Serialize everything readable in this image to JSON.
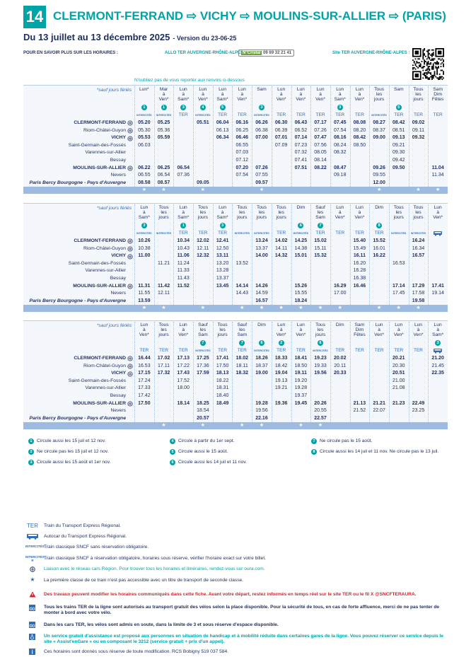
{
  "header": {
    "line_number": "14",
    "title": "CLERMONT-FERRAND ⇨ VICHY ⇨ MOULINS-SUR-ALLIER ⇨ (PARIS)",
    "subtitle": "Du 13 juillet au 13 décembre 2025",
    "version": "- Version du 23-06-25"
  },
  "info": {
    "label": "POUR EN SAVOIR PLUS SUR LES HORAIRES :",
    "phone_label": "ALLO TER AUVERGNE-RHÔNE-ALPES :",
    "phone_badge": "N°Cristal",
    "phone": "09 69 32 21 41",
    "site_label": "Site TER AUVERGNE-RHÔNE-ALPES :"
  },
  "notice": "N'oubliez pas de vous reporter aux renvois ci-dessous",
  "tables": [
    {
      "caption": "*sauf jours fériés",
      "days": [
        "Lun*",
        "Mar à Ven*",
        "Lun à Sam*",
        "Lun à Ven*",
        "Lun à Sam*",
        "Lun à Ven*",
        "Sam",
        "Lun à Ven*",
        "Lun à Ven*",
        "Lun à Ven*",
        "Lun à Sam*",
        "Lun à Ven*",
        "Tous les jours",
        "Sam",
        "Tous les jours",
        "Sam Dim Fêtes"
      ],
      "notes": [
        "1",
        "1",
        "3",
        "4",
        "5",
        null,
        "3",
        null,
        null,
        null,
        "3",
        null,
        null,
        "5",
        null,
        null
      ],
      "types": [
        "INTERCITÉS",
        "INTERCITÉS",
        "TER",
        "INTERCITÉS",
        "TER",
        "TER",
        "INTERCITÉS",
        "TER",
        "TER",
        "TER",
        "TER",
        "TER",
        "INTERCITÉS",
        "TER",
        "TER",
        "TER"
      ],
      "rows": [
        {
          "station": "CLERMONT-FERRAND",
          "times": [
            "05.20",
            "05.25",
            null,
            "05.51",
            "06.04",
            "06.16",
            "06.26",
            "06.30",
            "06.43",
            "07.17",
            "07.45",
            "08.08",
            "08.27",
            "08.42",
            "09.02",
            null
          ]
        },
        {
          "station": "Riom-Châtel-Guyon",
          "times": [
            "05.30",
            "05.36",
            null,
            null,
            "06.13",
            "06.25",
            "06.38",
            "06.39",
            "06.52",
            "07.26",
            "07.54",
            "08.20",
            "08.37",
            "08.51",
            "09.11",
            null
          ]
        },
        {
          "station": "VICHY",
          "times": [
            "05.53",
            "05.59",
            null,
            null,
            "06.34",
            "06.46",
            "07.00",
            "07.01",
            "07.14",
            "07.47",
            "08.16",
            "08.42",
            "09.00",
            "09.13",
            "09.32",
            null
          ]
        },
        {
          "station": "Saint-Germain-des-Fossés",
          "times": [
            "06.03",
            null,
            null,
            null,
            null,
            "06.55",
            null,
            "07.09",
            "07.23",
            "07.56",
            "08.24",
            "08.50",
            null,
            "09.21",
            null,
            null
          ]
        },
        {
          "station": "Varennes-sur-Allier",
          "times": [
            null,
            null,
            null,
            null,
            null,
            "07.03",
            null,
            null,
            "07.32",
            "08.05",
            "08.32",
            null,
            null,
            "09.30",
            null,
            null
          ]
        },
        {
          "station": "Bessay",
          "times": [
            null,
            null,
            null,
            null,
            null,
            "07.12",
            null,
            null,
            "07.41",
            "08.14",
            null,
            null,
            null,
            "09.42",
            null,
            null
          ]
        },
        {
          "station": "MOULINS-SUR-ALLIER",
          "times": [
            "06.22",
            "06.25",
            "06.54",
            null,
            null,
            "07.20",
            "07.26",
            null,
            "07.51",
            "08.22",
            "08.47",
            null,
            "09.26",
            "09.50",
            null,
            "11.04"
          ]
        },
        {
          "station": "Nevers",
          "times": [
            "06.55",
            "06.54",
            "07.36",
            null,
            null,
            "07.54",
            "07.55",
            null,
            null,
            null,
            "09.18",
            null,
            "09.55",
            null,
            null,
            "11.34"
          ]
        },
        {
          "station": "Paris Bercy Bourgogne - Pays d'Auvergne",
          "times": [
            "08.58",
            "08.57",
            null,
            "09.05",
            null,
            null,
            "09.57",
            null,
            null,
            null,
            null,
            null,
            "12.00",
            null,
            null,
            null
          ]
        }
      ],
      "stars": [
        "★",
        "★",
        null,
        "★",
        null,
        null,
        "★",
        null,
        null,
        null,
        null,
        null,
        "★",
        null,
        "★",
        "★"
      ]
    },
    {
      "caption": "*sauf jours fériés",
      "days": [
        "Lun à Sam*",
        "Tous les jours",
        "Lun à Sam*",
        "Tous les jours",
        "Lun à Sam*",
        "Tous les jours",
        "Tous les jours",
        "Tous les jours",
        "Dim",
        "Sauf les Sam",
        "Lun à Ven*",
        "Lun à Ven*",
        "Dim",
        "Tous les jours",
        "Tous les jours",
        "Lun à Ven*"
      ],
      "notes": [
        "3",
        null,
        "1",
        null,
        "3",
        null,
        null,
        null,
        "6",
        "7",
        null,
        null,
        "8",
        null,
        null,
        null
      ],
      "types": [
        "INTERCITÉS",
        "INTERCITÉS",
        "TER",
        "TER",
        "TER",
        "INTERCITÉS",
        "INTERCITÉS",
        "TER",
        "INTERCITÉS",
        "TER",
        "TER",
        "TER",
        "TER",
        "INTERCITÉS",
        "INTERCITÉS",
        null
      ],
      "rows": [
        {
          "station": "CLERMONT-FERRAND",
          "times": [
            "10.26",
            null,
            "10.34",
            "12.02",
            "12.41",
            null,
            "13.24",
            "14.02",
            "14.25",
            "15.02",
            null,
            "15.40",
            "15.52",
            null,
            "16.24",
            null
          ]
        },
        {
          "station": "Riom-Châtel-Guyon",
          "times": [
            "10.38",
            null,
            "10.43",
            "12.11",
            "12.50",
            null,
            "13.37",
            "14.11",
            "14.38",
            "15.11",
            null,
            "15.49",
            "16.01",
            null,
            "16.34",
            null
          ]
        },
        {
          "station": "VICHY",
          "times": [
            "11.00",
            null,
            "11.06",
            "12.32",
            "13.11",
            null,
            "14.00",
            "14.32",
            "15.01",
            "15.32",
            null,
            "16.11",
            "16.22",
            null,
            "16.57",
            null
          ]
        },
        {
          "station": "Saint-Germain-des-Fossés",
          "times": [
            null,
            "11.21",
            "11.24",
            null,
            "13.20",
            "13.52",
            null,
            null,
            null,
            null,
            null,
            "16.20",
            null,
            "16.53",
            null,
            null
          ]
        },
        {
          "station": "Varennes-sur-Allier",
          "times": [
            null,
            null,
            "11.33",
            null,
            "13.28",
            null,
            null,
            null,
            null,
            null,
            null,
            "16.28",
            null,
            null,
            null,
            null
          ]
        },
        {
          "station": "Bessay",
          "times": [
            null,
            null,
            "11.43",
            null,
            "13.37",
            null,
            null,
            null,
            null,
            null,
            null,
            "16.38",
            null,
            null,
            null,
            null
          ]
        },
        {
          "station": "MOULINS-SUR-ALLIER",
          "times": [
            "11.31",
            "11.42",
            "11.52",
            null,
            "13.45",
            "14.14",
            "14.26",
            null,
            "15.26",
            null,
            "16.29",
            "16.46",
            null,
            "17.14",
            "17.29",
            "17.41"
          ]
        },
        {
          "station": "Nevers",
          "times": [
            "11.55",
            "12.11",
            null,
            null,
            null,
            "14.43",
            "14.59",
            null,
            "15.55",
            null,
            "17.00",
            null,
            null,
            "17.45",
            "17.58",
            "19.14"
          ]
        },
        {
          "station": "Paris Bercy Bourgogne - Pays d'Auvergne",
          "times": [
            "13.59",
            null,
            null,
            null,
            null,
            null,
            "16.57",
            null,
            "18.24",
            null,
            null,
            null,
            null,
            null,
            "19.58",
            null
          ]
        }
      ],
      "stars": [
        "★",
        "★",
        null,
        "★",
        null,
        "★",
        "★",
        "★",
        "★",
        "★",
        "★",
        null,
        "★",
        "★",
        "★",
        null
      ]
    },
    {
      "caption": "*sauf jours fériés",
      "days": [
        "Lun à Ven*",
        "Tous les jours",
        "Lun à Ven*",
        "Sauf les Sam",
        "Tous les jours",
        "Sauf les Sam",
        "Dim",
        "Lun à Ven*",
        "Lun à Ven*",
        "Tous les jours",
        "Dim",
        "Sam Dim Fêtes",
        "Lun à Ven*",
        "Lun à Ven*",
        "Lun à Ven*",
        "Lun à Sam*"
      ],
      "notes": [
        null,
        null,
        null,
        "7",
        null,
        "7",
        "6",
        "2",
        null,
        "6",
        null,
        null,
        null,
        null,
        null,
        "3"
      ],
      "types": [
        "TER",
        "TER",
        "TER",
        "INTERCITÉS",
        "TER",
        "TER",
        "INTERCITÉS",
        "TER",
        "TER",
        "INTERCITÉS",
        "TER",
        "TER",
        "TER",
        "TER",
        "TER",
        null
      ],
      "rows": [
        {
          "station": "CLERMONT-FERRAND",
          "times": [
            "16.44",
            "17.02",
            "17.13",
            "17.25",
            "17.41",
            "18.02",
            "18.26",
            "18.33",
            "18.41",
            "19.23",
            "20.02",
            null,
            null,
            "20.21",
            null,
            "21.20"
          ]
        },
        {
          "station": "Riom-Châtel-Guyon",
          "times": [
            "16.53",
            "17.11",
            "17.22",
            "17.36",
            "17.50",
            "18.11",
            "18.37",
            "18.42",
            "18.50",
            "19.33",
            "20.11",
            null,
            null,
            "20.30",
            null,
            "21.45"
          ]
        },
        {
          "station": "VICHY",
          "times": [
            "17.15",
            "17.32",
            "17.43",
            "17.59",
            "18.13",
            "18.32",
            "19.00",
            "19.04",
            "19.11",
            "19.56",
            "20.33",
            null,
            null,
            "20.51",
            null,
            "22.35"
          ]
        },
        {
          "station": "Saint-Germain-des-Fossés",
          "times": [
            "17.24",
            null,
            "17.52",
            null,
            "18.22",
            null,
            null,
            "19.13",
            "19.20",
            null,
            null,
            null,
            null,
            "21.00",
            null,
            null
          ]
        },
        {
          "station": "Varennes-sur-Allier",
          "times": [
            "17.33",
            null,
            "18.00",
            null,
            "18.31",
            null,
            null,
            "19.21",
            "19.28",
            null,
            null,
            null,
            null,
            "21.08",
            null,
            null
          ]
        },
        {
          "station": "Bessay",
          "times": [
            "17.42",
            null,
            null,
            null,
            "18.40",
            null,
            null,
            null,
            "19.37",
            null,
            null,
            null,
            null,
            null,
            null,
            null
          ]
        },
        {
          "station": "MOULINS-SUR-ALLIER",
          "times": [
            "17.50",
            null,
            "18.14",
            "18.25",
            "18.49",
            null,
            "19.28",
            "19.36",
            "19.45",
            "20.26",
            null,
            "21.13",
            "21.21",
            "21.23",
            "22.49",
            null
          ]
        },
        {
          "station": "Nevers",
          "times": [
            null,
            null,
            null,
            "18.54",
            null,
            null,
            "19.56",
            null,
            null,
            "20.55",
            null,
            "21.52",
            "22.07",
            null,
            "23.25",
            null
          ]
        },
        {
          "station": "Paris Bercy Bourgogne - Pays d'Auvergne",
          "times": [
            null,
            null,
            null,
            "20.57",
            null,
            null,
            "22.16",
            null,
            null,
            "22.57",
            null,
            null,
            null,
            null,
            null,
            null
          ]
        }
      ],
      "stars": [
        null,
        "★",
        null,
        "★",
        null,
        "★",
        "★",
        null,
        "★",
        "★",
        null,
        null,
        null,
        null,
        null,
        null
      ]
    }
  ],
  "footnotes": [
    {
      "num": "1",
      "text": "Circule aussi les 15 juil et 12 nov."
    },
    {
      "num": "2",
      "text": "Ne circule pas les 15 juil et 12 nov."
    },
    {
      "num": "3",
      "text": "Circule aussi les 15 août et 1er nov."
    },
    {
      "num": "4",
      "text": "Circule à partir du 1er sept."
    },
    {
      "num": "5",
      "text": "Circule aussi le 15 août."
    },
    {
      "num": "6",
      "text": "Circule aussi les 14 juil et 11 nov."
    },
    {
      "num": "7",
      "text": "Ne circule pas le 15 août."
    },
    {
      "num": "8",
      "text": "Circule aussi les 14 juil et 11 nov. Ne circule pas le 13 juil."
    }
  ],
  "legend": [
    {
      "symbol": "TER",
      "text": "Train du Transport Express Régional."
    },
    {
      "text": "Autocar du Transport Express Régional."
    },
    {
      "symbol": "INTERCITÉS",
      "text": "Train classique SNCF sans réservation obligatoire."
    },
    {
      "symbol": "INTERCITÉS",
      "mark": "R",
      "text": "Train classique SNCF à réservation obligatoire, horaires sous réserve, vérifier l'horaire exact sur votre billet."
    },
    {
      "text": "Liaison avec le réseau cars Région. Pour trouver tous les horaires et itinéraires, rendez-vous sur oura.com."
    },
    {
      "symbol": "★",
      "text": "La première classe de ce train n'est pas accessible avec un titre de transport de seconde classe."
    }
  ],
  "notices": [
    "Des travaux peuvent modifier les horaires communiqués dans cette fiche. Avant votre départ, restez informés en temps réel sur le site TER ou le fil X @SNCFTERAURA.",
    "Tous les trains TER de la ligne sont autorisés au transport gratuit des vélos selon la place disponible. Pour la sécurité de tous, en cas de forte affluence, merci de ne pas tenter de monter à bord avec votre vélo.",
    "Dans les cars TER, les vélos sont admis en soute, dans la limite de 3 et sous réserve d'espace disponible.",
    "Un service gratuit d'assistance est proposé aux personnes en situation de handicap et à mobilité réduite dans certaines gares de la ligne. Vous pouvez réserver ce service depuis le site « Assist'enGare » ou en composant le 3212 (service gratuit + prix d'un appel)."
  ],
  "footer": "Ces horaires sont donnés sous réserve de toute modification. RCS Bobigny 519 037 584."
}
